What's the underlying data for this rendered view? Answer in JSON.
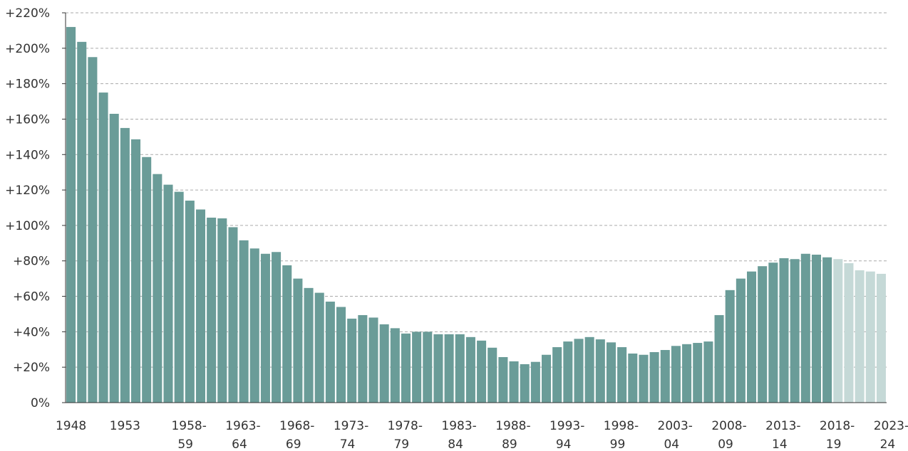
{
  "chart_data": {
    "type": "bar",
    "categories": [
      "1948",
      null,
      null,
      null,
      null,
      "1953",
      null,
      null,
      null,
      null,
      [
        "1958-",
        "59"
      ],
      null,
      null,
      null,
      null,
      [
        "1963-",
        "64"
      ],
      null,
      null,
      null,
      null,
      [
        "1968-",
        "69"
      ],
      null,
      null,
      null,
      null,
      [
        "1973-",
        "74"
      ],
      null,
      null,
      null,
      null,
      [
        "1978-",
        "79"
      ],
      null,
      null,
      null,
      null,
      [
        "1983-",
        "84"
      ],
      null,
      null,
      null,
      null,
      [
        "1988-",
        "89"
      ],
      null,
      null,
      null,
      null,
      [
        "1993-",
        "94"
      ],
      null,
      null,
      null,
      null,
      [
        "1998-",
        "99"
      ],
      null,
      null,
      null,
      null,
      [
        "2003-",
        "04"
      ],
      null,
      null,
      null,
      null,
      [
        "2008-",
        "09"
      ],
      null,
      null,
      null,
      null,
      [
        "2013-",
        "14"
      ],
      null,
      null,
      null,
      null,
      [
        "2018-",
        "19"
      ],
      null,
      null,
      null,
      null,
      [
        "2023-",
        "24"
      ]
    ],
    "values": [
      212,
      203.6,
      195,
      175,
      163,
      155,
      148.6,
      138.6,
      129,
      123,
      119,
      114,
      109,
      104.4,
      104,
      99,
      91.6,
      87,
      84,
      85,
      77.5,
      70,
      64.7,
      62,
      57,
      54,
      47.4,
      49.4,
      48,
      44.2,
      42,
      39,
      40,
      40,
      38.6,
      38.6,
      38.6,
      37,
      35,
      31,
      25.7,
      23.3,
      21.7,
      23,
      27,
      31.3,
      34.5,
      36,
      37,
      35.7,
      34,
      31.3,
      27.7,
      27,
      28.5,
      29.7,
      32,
      33,
      33.7,
      34.5,
      49.4,
      63.5,
      70,
      74,
      77,
      79,
      81.5,
      81,
      84,
      83.5,
      82,
      81,
      78.7,
      74.7,
      74,
      72.7
    ],
    "colors": [
      "#6a9c98",
      "#6a9c98",
      "#6a9c98",
      "#6a9c98",
      "#6a9c98",
      "#6a9c98",
      "#6a9c98",
      "#6a9c98",
      "#6a9c98",
      "#6a9c98",
      "#6a9c98",
      "#6a9c98",
      "#6a9c98",
      "#6a9c98",
      "#6a9c98",
      "#6a9c98",
      "#6a9c98",
      "#6a9c98",
      "#6a9c98",
      "#6a9c98",
      "#6a9c98",
      "#6a9c98",
      "#6a9c98",
      "#6a9c98",
      "#6a9c98",
      "#6a9c98",
      "#6a9c98",
      "#6a9c98",
      "#6a9c98",
      "#6a9c98",
      "#6a9c98",
      "#6a9c98",
      "#6a9c98",
      "#6a9c98",
      "#6a9c98",
      "#6a9c98",
      "#6a9c98",
      "#6a9c98",
      "#6a9c98",
      "#6a9c98",
      "#6a9c98",
      "#6a9c98",
      "#6a9c98",
      "#6a9c98",
      "#6a9c98",
      "#6a9c98",
      "#6a9c98",
      "#6a9c98",
      "#6a9c98",
      "#6a9c98",
      "#6a9c98",
      "#6a9c98",
      "#6a9c98",
      "#6a9c98",
      "#6a9c98",
      "#6a9c98",
      "#6a9c98",
      "#6a9c98",
      "#6a9c98",
      "#6a9c98",
      "#6a9c98",
      "#6a9c98",
      "#6a9c98",
      "#6a9c98",
      "#6a9c98",
      "#6a9c98",
      "#6a9c98",
      "#6a9c98",
      "#6a9c98",
      "#6a9c98",
      "#6a9c98",
      "#c5d9d7",
      "#c5d9d7",
      "#c5d9d7",
      "#c5d9d7",
      "#c5d9d7"
    ],
    "ylim": [
      0,
      220
    ],
    "yticks": [
      {
        "value": 0,
        "label": "0%"
      },
      {
        "value": 20,
        "label": "+20%"
      },
      {
        "value": 40,
        "label": "+40%"
      },
      {
        "value": 60,
        "label": "+60%"
      },
      {
        "value": 80,
        "label": "+80%"
      },
      {
        "value": 100,
        "label": "+100%"
      },
      {
        "value": 120,
        "label": "+120%"
      },
      {
        "value": 140,
        "label": "+140%"
      },
      {
        "value": 160,
        "label": "+160%"
      },
      {
        "value": 180,
        "label": "+180%"
      },
      {
        "value": 200,
        "label": "+200%"
      },
      {
        "value": 220,
        "label": "+220%"
      }
    ],
    "grid": true
  }
}
